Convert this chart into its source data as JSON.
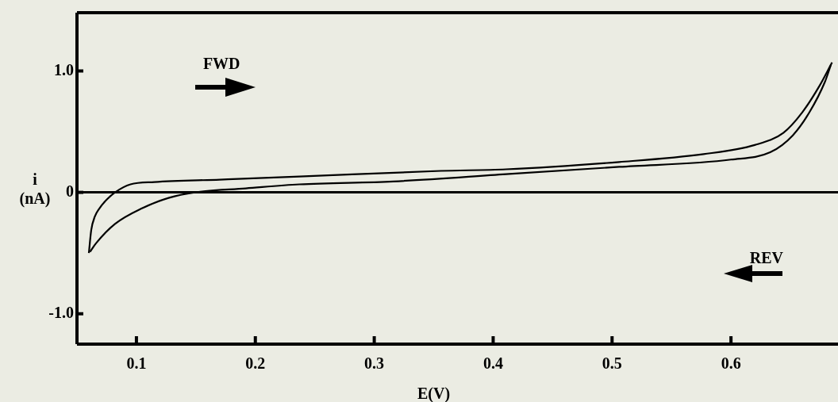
{
  "chart_data": {
    "type": "line",
    "xlabel": "E(V)",
    "ylabel": "i\n(nA)",
    "xlim": [
      0.05,
      0.69
    ],
    "ylim": [
      -1.25,
      1.48
    ],
    "xticks": [
      0.1,
      0.2,
      0.3,
      0.4,
      0.5,
      0.6
    ],
    "yticks": [
      {
        "value": 1,
        "label": "1.0"
      },
      0,
      {
        "value": -1,
        "label": "-1.0"
      }
    ],
    "series": [
      {
        "color": "#000000",
        "x": [
          0.06,
          0.062,
          0.065,
          0.069,
          0.075,
          0.082,
          0.095,
          0.115,
          0.17,
          0.237,
          0.356,
          0.411,
          0.506,
          0.577,
          0.62,
          0.644,
          0.66,
          0.674,
          0.685
        ],
        "values": [
          -0.5,
          -0.31,
          -0.2,
          -0.13,
          -0.06,
          0,
          0.066,
          0.085,
          0.105,
          0.13,
          0.177,
          0.19,
          0.25,
          0.315,
          0.39,
          0.49,
          0.66,
          0.87,
          1.07
        ]
      },
      {
        "color": "#000000",
        "x": [
          0.061,
          0.066,
          0.082,
          0.105,
          0.127,
          0.149,
          0.192,
          0.237,
          0.316,
          0.411,
          0.506,
          0.6,
          0.633,
          0.652,
          0.666,
          0.679,
          0.684
        ],
        "values": [
          -0.49,
          -0.42,
          -0.26,
          -0.13,
          -0.046,
          0,
          0.033,
          0.066,
          0.09,
          0.15,
          0.21,
          0.27,
          0.33,
          0.47,
          0.66,
          0.91,
          1.05
        ]
      }
    ],
    "ref_lines": [
      {
        "axis": "y",
        "value": 0,
        "color": "#000000"
      }
    ],
    "annotations": [
      "FWD",
      "REV"
    ],
    "grid": false,
    "legend": false,
    "marker": "none",
    "line_style": "solid"
  }
}
